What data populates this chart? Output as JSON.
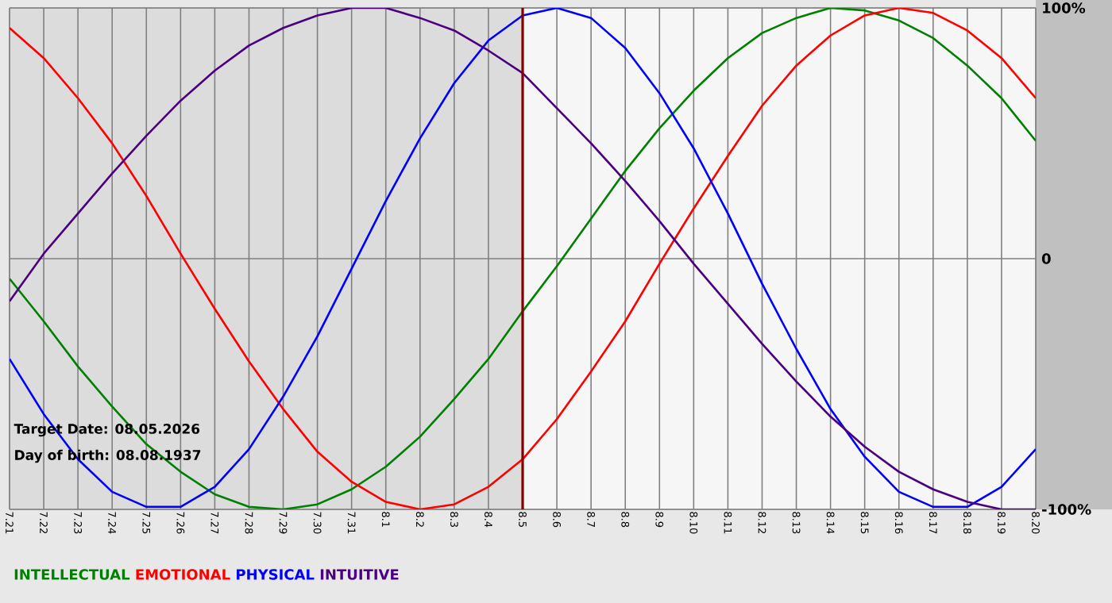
{
  "chart_data": {
    "type": "line",
    "categories": [
      "7.21",
      "7.22",
      "7.23",
      "7.24",
      "7.25",
      "7.26",
      "7.27",
      "7.28",
      "7.29",
      "7.30",
      "7.31",
      "8.1",
      "8.2",
      "8.3",
      "8.4",
      "8.5",
      "8.6",
      "8.7",
      "8.8",
      "8.9",
      "8.10",
      "8.11",
      "8.12",
      "8.13",
      "8.14",
      "8.15",
      "8.16",
      "8.17",
      "8.18",
      "8.19",
      "8.20"
    ],
    "series": [
      {
        "name": "INTELLECTUAL",
        "color": "#008000",
        "values": [
          -8,
          -25,
          -43,
          -59,
          -74,
          -85,
          -94,
          -99,
          -100,
          -98,
          -92,
          -83,
          -71,
          -56,
          -40,
          -21,
          -3,
          16,
          35,
          52,
          67,
          80,
          90,
          96,
          100,
          99,
          95,
          88,
          77,
          64,
          47
        ]
      },
      {
        "name": "EMOTIONAL",
        "color": "#ff0000",
        "values": [
          92,
          80,
          64,
          46,
          25,
          2,
          -20,
          -41,
          -60,
          -77,
          -89,
          -97,
          -100,
          -98,
          -91,
          -80,
          -64,
          -45,
          -25,
          -2,
          20,
          41,
          61,
          77,
          89,
          97,
          100,
          98,
          91,
          80,
          64
        ]
      },
      {
        "name": "PHYSICAL",
        "color": "#0000ff",
        "values": [
          -40,
          -62,
          -80,
          -93,
          -99,
          -99,
          -91,
          -76,
          -55,
          -31,
          -4,
          23,
          48,
          70,
          87,
          97,
          100,
          96,
          84,
          66,
          44,
          18,
          -10,
          -36,
          -60,
          -79,
          -93,
          -99,
          -99,
          -91,
          -76
        ]
      },
      {
        "name": "INTUITIVE",
        "color": "#4b0082",
        "values": [
          -17,
          2,
          18,
          34,
          49,
          63,
          75,
          85,
          92,
          97,
          100,
          100,
          96,
          91,
          83,
          74,
          60,
          46,
          31,
          15,
          -2,
          -18,
          -34,
          -49,
          -63,
          -75,
          -85,
          -92,
          -97,
          -100,
          -100
        ]
      }
    ],
    "ylim": [
      -100,
      100
    ],
    "yticks": [
      {
        "value": 100,
        "label": "100%"
      },
      0,
      {
        "value": -100,
        "label": "-100%"
      }
    ],
    "grid": true,
    "legend": "bottom",
    "ref_lines": [
      {
        "axis": "x",
        "value": "8.5",
        "color": "#800000"
      }
    ],
    "bands": [
      {
        "axis": "x",
        "from": "7.21",
        "to": "8.5",
        "color": "#dcdcdc"
      }
    ],
    "annotations": [
      "Target Date: 08.05.2026",
      "Day of birth: 08.08.1937"
    ]
  }
}
